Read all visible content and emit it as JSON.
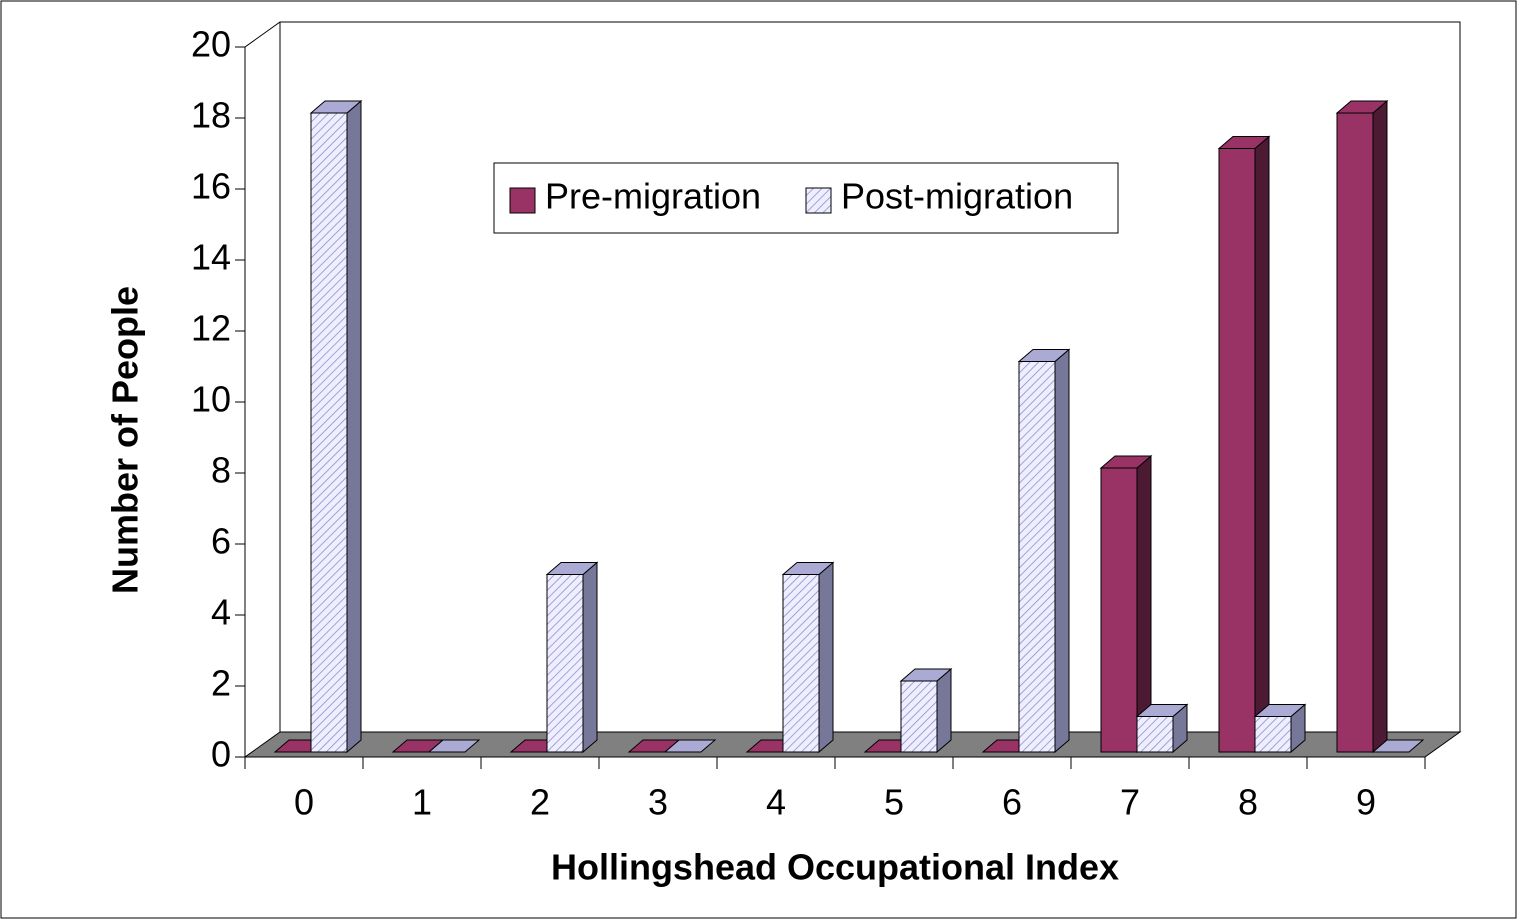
{
  "chart_data": {
    "type": "bar3d",
    "x_label": "Hollingshead Occupational Index",
    "y_label": "Number of People",
    "categories": [
      "0",
      "1",
      "2",
      "3",
      "4",
      "5",
      "6",
      "7",
      "8",
      "9"
    ],
    "series": [
      {
        "name": "Pre-migration",
        "color": "#993366",
        "values": [
          0,
          0,
          0,
          0,
          0,
          0,
          0,
          8,
          17,
          18
        ]
      },
      {
        "name": "Post-migration",
        "color": "#ccccff",
        "values": [
          18,
          0,
          5,
          0,
          5,
          2,
          11,
          1,
          1,
          0
        ]
      }
    ],
    "ylim": [
      0,
      20
    ],
    "yticks": [
      0,
      2,
      4,
      6,
      8,
      10,
      12,
      14,
      16,
      18,
      20
    ],
    "grid": false
  }
}
